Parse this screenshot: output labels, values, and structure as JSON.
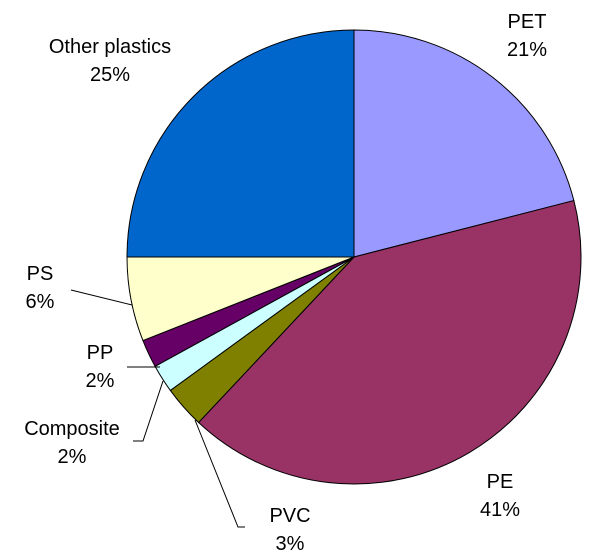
{
  "chart_data": {
    "type": "pie",
    "title": "",
    "start_angle_deg": 0,
    "direction": "clockwise",
    "legend": "none",
    "slices": [
      {
        "name": "PET",
        "label": "PET",
        "value": 21,
        "value_label": "21%",
        "color": "#9999ff"
      },
      {
        "name": "PE",
        "label": "PE",
        "value": 41,
        "value_label": "41%",
        "color": "#993366"
      },
      {
        "name": "PVC",
        "label": "PVC",
        "value": 3,
        "value_label": "3%",
        "color": "#808000"
      },
      {
        "name": "Composite",
        "label": "Composite",
        "value": 2,
        "value_label": "2%",
        "color": "#ccffff"
      },
      {
        "name": "PP",
        "label": "PP",
        "value": 2,
        "value_label": "2%",
        "color": "#660066"
      },
      {
        "name": "PS",
        "label": "PS",
        "value": 6,
        "value_label": "6%",
        "color": "#ffffcc"
      },
      {
        "name": "Other plastics",
        "label": "Other plastics",
        "value": 25,
        "value_label": "25%",
        "color": "#0066cc"
      }
    ]
  }
}
